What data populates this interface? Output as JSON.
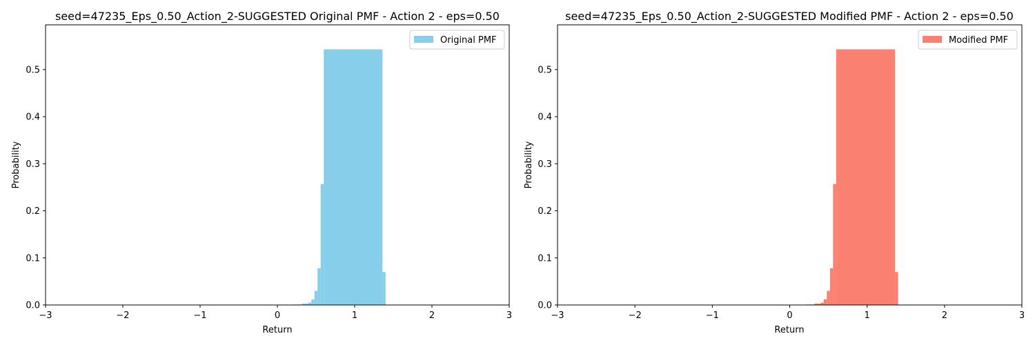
{
  "chart_data": [
    {
      "type": "bar",
      "title": "seed=47235_Eps_0.50_Action_2-SUGGESTED Original PMF - Action 2 - eps=0.50",
      "xlabel": "Return",
      "ylabel": "Probability",
      "xlim": [
        -3,
        3
      ],
      "ylim": [
        0,
        0.595
      ],
      "xticks": [
        "−3",
        "−2",
        "−1",
        "0",
        "1",
        "2",
        "3"
      ],
      "yticks": [
        "0.0",
        "0.1",
        "0.2",
        "0.3",
        "0.4",
        "0.5"
      ],
      "grid": false,
      "legend_position": "top-right",
      "color": "#87CEEB",
      "series": [
        {
          "name": "Original PMF",
          "bars": [
            {
              "x0": 0.2,
              "x1": 0.32,
              "y": 0.001
            },
            {
              "x0": 0.32,
              "x1": 0.4,
              "y": 0.003
            },
            {
              "x0": 0.4,
              "x1": 0.44,
              "y": 0.005
            },
            {
              "x0": 0.44,
              "x1": 0.48,
              "y": 0.012
            },
            {
              "x0": 0.48,
              "x1": 0.52,
              "y": 0.03
            },
            {
              "x0": 0.52,
              "x1": 0.56,
              "y": 0.078
            },
            {
              "x0": 0.56,
              "x1": 0.6,
              "y": 0.257
            },
            {
              "x0": 0.6,
              "x1": 1.36,
              "y": 0.543
            },
            {
              "x0": 1.36,
              "x1": 1.4,
              "y": 0.07
            }
          ]
        }
      ]
    },
    {
      "type": "bar",
      "title": "seed=47235_Eps_0.50_Action_2-SUGGESTED Modified PMF - Action 2 - eps=0.50",
      "xlabel": "Return",
      "ylabel": "Probability",
      "xlim": [
        -3,
        3
      ],
      "ylim": [
        0,
        0.595
      ],
      "xticks": [
        "−3",
        "−2",
        "−1",
        "0",
        "1",
        "2",
        "3"
      ],
      "yticks": [
        "0.0",
        "0.1",
        "0.2",
        "0.3",
        "0.4",
        "0.5"
      ],
      "grid": false,
      "legend_position": "top-right",
      "color": "#FA8072",
      "series": [
        {
          "name": "Modified PMF",
          "bars": [
            {
              "x0": 0.2,
              "x1": 0.32,
              "y": 0.001
            },
            {
              "x0": 0.32,
              "x1": 0.4,
              "y": 0.003
            },
            {
              "x0": 0.4,
              "x1": 0.44,
              "y": 0.005
            },
            {
              "x0": 0.44,
              "x1": 0.48,
              "y": 0.012
            },
            {
              "x0": 0.48,
              "x1": 0.52,
              "y": 0.03
            },
            {
              "x0": 0.52,
              "x1": 0.56,
              "y": 0.078
            },
            {
              "x0": 0.56,
              "x1": 0.6,
              "y": 0.257
            },
            {
              "x0": 0.6,
              "x1": 1.36,
              "y": 0.543
            },
            {
              "x0": 1.36,
              "x1": 1.4,
              "y": 0.07
            }
          ]
        }
      ]
    }
  ]
}
